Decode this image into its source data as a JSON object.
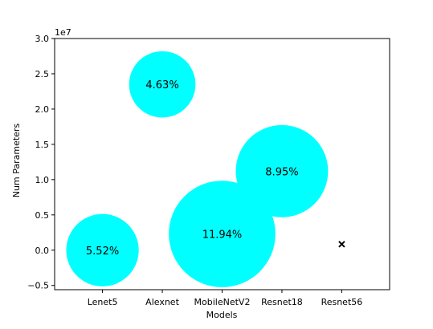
{
  "chart_data": {
    "type": "scatter",
    "marker_style": "bubble",
    "categories": [
      "Lenet5",
      "Alexnet",
      "MobileNetV2",
      "Resnet18",
      "Resnet56"
    ],
    "x": [
      "Lenet5",
      "Alexnet",
      "MobileNetV2",
      "Resnet18",
      "Resnet56"
    ],
    "values": [
      0,
      23500000,
      2300000,
      11200000,
      850000
    ],
    "bubble_values": [
      5.52,
      4.63,
      11.94,
      8.95,
      null
    ],
    "labels": [
      "5.52%",
      "4.63%",
      "11.94%",
      "8.95%",
      ""
    ],
    "markers": [
      "bubble",
      "bubble",
      "bubble",
      "bubble",
      "x"
    ],
    "xlabel": "Models",
    "ylabel": "Num Parameters",
    "ylim": [
      -5600000,
      30000000
    ],
    "yticks": [
      -0.5,
      0.0,
      0.5,
      1.0,
      1.5,
      2.0,
      2.5,
      3.0
    ],
    "ytick_labels": [
      "−0.5",
      "0.0",
      "0.5",
      "1.0",
      "1.5",
      "2.0",
      "2.5",
      "3.0"
    ],
    "y_scale_label": "1e7",
    "y_scale_factor": 10000000,
    "grid": false,
    "colors": {
      "bubble": "#00ffff",
      "marker": "#000000",
      "axes": "#000000"
    }
  }
}
